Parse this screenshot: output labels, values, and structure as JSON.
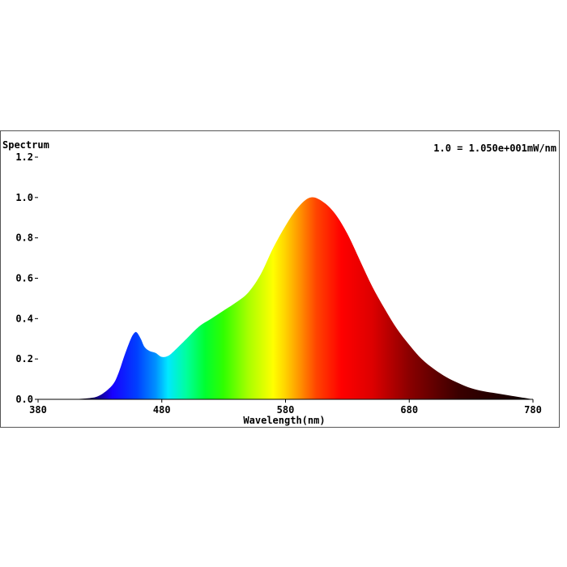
{
  "chart_data": {
    "type": "area",
    "title": "Spectrum",
    "scale_note": "1.0 = 1.050e+001mW/nm",
    "xlabel": "Wavelength(nm)",
    "ylabel": "",
    "xlim": [
      380,
      780
    ],
    "ylim": [
      0,
      1.2
    ],
    "x_ticks": [
      "380",
      "480",
      "580",
      "680",
      "780"
    ],
    "y_ticks": [
      "0.0",
      "0.2",
      "0.4",
      "0.6",
      "0.8",
      "1.0",
      "1.2"
    ],
    "fill": "visible spectrum colors by wavelength",
    "series": [
      {
        "x": [
          380,
          400,
          420,
          430,
          440,
          445,
          450,
          455,
          458,
          460,
          463,
          466,
          470,
          475,
          480,
          485,
          490,
          500,
          510,
          520,
          530,
          540,
          550,
          560,
          570,
          580,
          590,
          600,
          610,
          620,
          630,
          640,
          650,
          660,
          670,
          680,
          690,
          700,
          710,
          720,
          730,
          740,
          750,
          760,
          770,
          780
        ],
        "y": [
          0.0,
          0.0,
          0.005,
          0.02,
          0.07,
          0.13,
          0.22,
          0.3,
          0.33,
          0.33,
          0.3,
          0.26,
          0.24,
          0.23,
          0.21,
          0.215,
          0.24,
          0.3,
          0.36,
          0.4,
          0.44,
          0.48,
          0.53,
          0.62,
          0.75,
          0.86,
          0.95,
          1.0,
          0.98,
          0.92,
          0.82,
          0.69,
          0.56,
          0.45,
          0.35,
          0.27,
          0.2,
          0.15,
          0.11,
          0.08,
          0.055,
          0.04,
          0.03,
          0.02,
          0.01,
          0.0
        ]
      }
    ]
  }
}
